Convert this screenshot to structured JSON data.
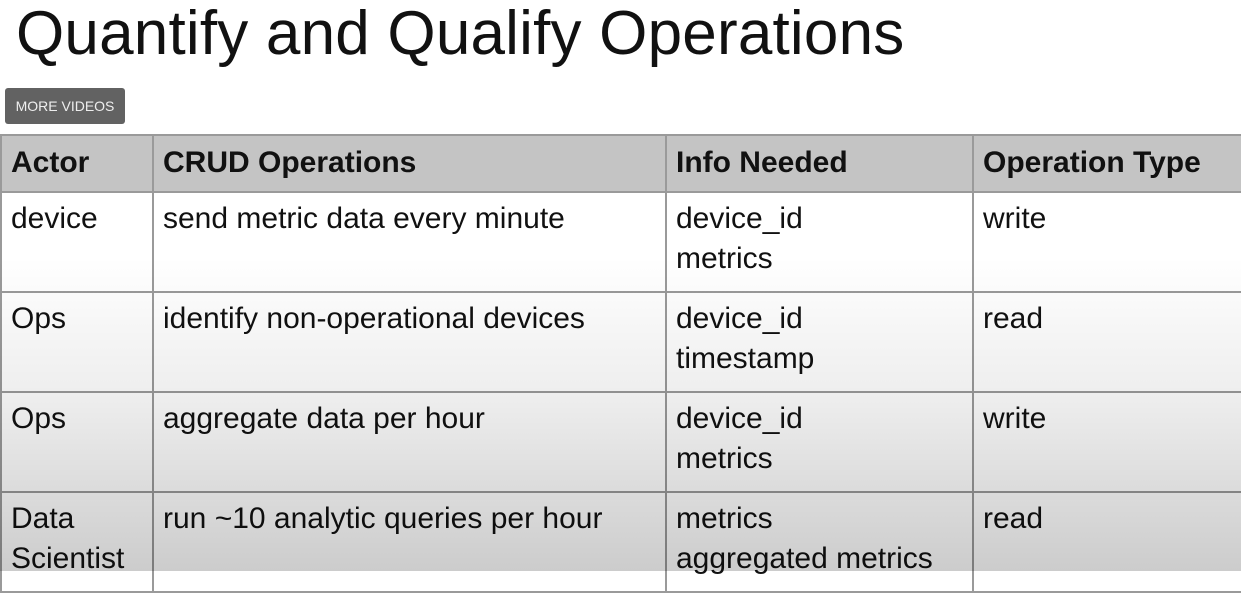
{
  "slide": {
    "title": "Quantify and Qualify Operations",
    "table": {
      "headers": [
        "Actor",
        "CRUD Operations",
        "Info Needed",
        "Operation Type"
      ],
      "rows": [
        {
          "actor": "device",
          "operation": "send metric data every minute",
          "info": [
            "device_id",
            "metrics"
          ],
          "type": "write"
        },
        {
          "actor": "Ops",
          "operation": "identify non-operational devices",
          "info": [
            "device_id",
            "timestamp"
          ],
          "type": "read"
        },
        {
          "actor": "Ops",
          "operation": "aggregate data per hour",
          "info": [
            "device_id",
            "metrics"
          ],
          "type": "write"
        },
        {
          "actor": "Data Scientist",
          "operation": "run ~10 analytic queries per hour",
          "info": [
            "metrics",
            "aggregated metrics"
          ],
          "type": "read"
        }
      ]
    }
  },
  "player": {
    "more_videos_label": "MORE VIDEOS"
  }
}
